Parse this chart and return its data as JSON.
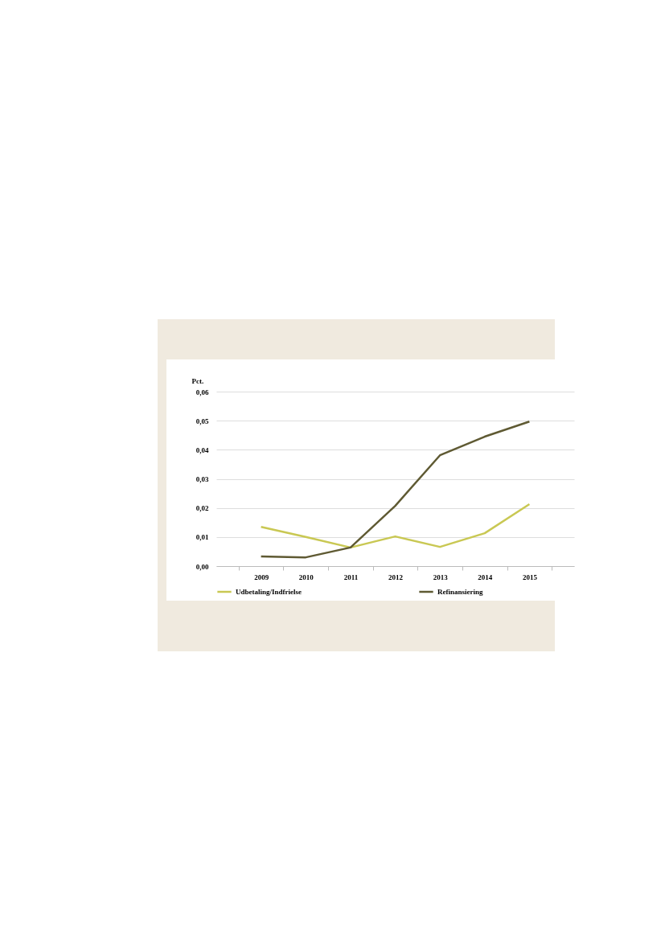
{
  "chart_data": {
    "type": "line",
    "ylabel": "Pct.",
    "categories": [
      "2009",
      "2010",
      "2011",
      "2012",
      "2013",
      "2014",
      "2015"
    ],
    "series": [
      {
        "name": "Udbetaling/Indfrielse",
        "color": "#c9c853",
        "values": [
          0.0135,
          0.01,
          0.0064,
          0.0102,
          0.0066,
          0.0113,
          0.0213
        ]
      },
      {
        "name": "Refinansiering",
        "color": "#5f5a33",
        "values": [
          0.0033,
          0.003,
          0.0064,
          0.0207,
          0.0381,
          0.0445,
          0.0497
        ]
      }
    ],
    "ylim": [
      0,
      0.06
    ],
    "yticks": [
      {
        "value": 0,
        "label": "0,00"
      },
      {
        "value": 0.01,
        "label": "0,01"
      },
      {
        "value": 0.02,
        "label": "0,02"
      },
      {
        "value": 0.03,
        "label": "0,03"
      },
      {
        "value": 0.04,
        "label": "0,04"
      },
      {
        "value": 0.05,
        "label": "0,05"
      },
      {
        "value": 0.06,
        "label": "0,06"
      }
    ],
    "grid": "y",
    "legend": "bottom",
    "line_style": "solid"
  }
}
